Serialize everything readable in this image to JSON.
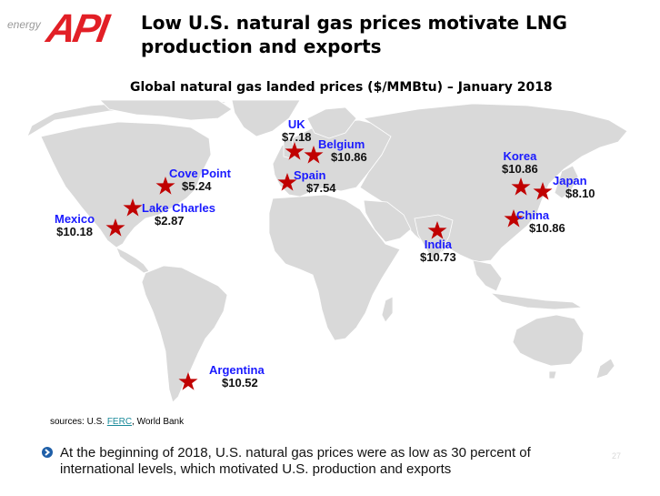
{
  "logo": {
    "tagline": "energy",
    "brand": "API",
    "brand_color": "#e21f26"
  },
  "title": "Low U.S. natural gas prices motivate LNG production and exports",
  "map": {
    "title": "Global natural gas landed prices ($/MMBtu) – January 2018",
    "land_color": "#d9d9d9",
    "marker_color": "#c00000",
    "name_color": "#1a1aff",
    "markers": [
      {
        "name": "Cove Point",
        "price": "$5.24",
        "value": 5.24
      },
      {
        "name": "Lake Charles",
        "price": "$2.87",
        "value": 2.87
      },
      {
        "name": "Mexico",
        "price": "$10.18",
        "value": 10.18
      },
      {
        "name": "UK",
        "price": "$7.18",
        "value": 7.18
      },
      {
        "name": "Belgium",
        "price": "$10.86",
        "value": 10.86
      },
      {
        "name": "Spain",
        "price": "$7.54",
        "value": 7.54
      },
      {
        "name": "Korea",
        "price": "$10.86",
        "value": 10.86
      },
      {
        "name": "Japan",
        "price": "$8.10",
        "value": 8.1
      },
      {
        "name": "China",
        "price": "$10.86",
        "value": 10.86
      },
      {
        "name": "India",
        "price": "$10.73",
        "value": 10.73
      },
      {
        "name": "Argentina",
        "price": "$10.52",
        "value": 10.52
      }
    ]
  },
  "sources": {
    "prefix": "sources: U.S. ",
    "link": "FERC",
    "suffix": ", World Bank"
  },
  "bullet": {
    "icon": "chevron-right-icon",
    "text": "At the beginning of 2018, U.S. natural gas prices were as low as 30 percent of international levels, which motivated U.S. production and exports"
  },
  "page_number": "27"
}
